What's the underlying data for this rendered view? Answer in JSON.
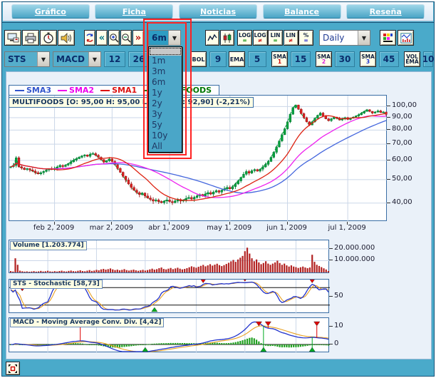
{
  "tabs": [
    "Gráfico",
    "Ficha",
    "Noticias",
    "Balance",
    "Reseña"
  ],
  "toolbar": {
    "period": {
      "value": "6m",
      "options": [
        "1m",
        "3m",
        "6m",
        "1y",
        "2y",
        "3y",
        "5y",
        "10y",
        "All"
      ]
    },
    "interval": {
      "value": "Daily"
    },
    "scale_buttons": [
      {
        "top": "LOG",
        "bottom": "=",
        "bottom_color": "#008800"
      },
      {
        "top": "LOG",
        "bottom": "≠",
        "bottom_color": "#CC0000"
      },
      {
        "top": "LIN",
        "bottom": "=",
        "bottom_color": "#008800"
      },
      {
        "top": "LIN",
        "bottom": "≠",
        "bottom_color": "#CC0000"
      },
      {
        "top": "%",
        "bottom": "=",
        "bottom_color": "#2222CC"
      }
    ]
  },
  "indicator_bar": {
    "combo1": "STS",
    "combo2": "MACD",
    "param1": "12",
    "param2": "26",
    "bol_label": "BOL",
    "bol_value": "9",
    "ema_label": "EMA",
    "ema_value": "5",
    "sma_label": "SMA",
    "sma1_sub": "1",
    "sma1_value": "15",
    "sma2_sub": "2",
    "sma2_value": "30",
    "sma3_sub": "3",
    "sma3_value": "45",
    "vol_label_top": "VOL",
    "vol_label_bottom": "EMA",
    "vol_value": "10"
  },
  "legend": [
    {
      "label": "SMA3",
      "color": "#3355CC"
    },
    {
      "label": "SMA2",
      "color": "#EE00EE"
    },
    {
      "label": "SMA1",
      "color": "#DD1111"
    },
    {
      "label": "MULTIFOODS",
      "color": "#007700"
    }
  ],
  "chart_data": {
    "type": "candlestick",
    "symbol": "MULTIFOODS",
    "title": "MULTIFOODS [O: 95,00  H: 95,00  L: 91,10  C: 92,90] (-2,21%)",
    "scale": "log",
    "interval": "Daily",
    "x_labels": [
      "feb 2, 2009",
      "mar 2, 2009",
      "abr 1, 2009",
      "may 1, 2009",
      "jun 1, 2009",
      "jul 1, 2009"
    ],
    "gridline_days": [
      16,
      37,
      58,
      80,
      101,
      123
    ],
    "y_ticks": [
      {
        "label": "100,00",
        "value": 100
      },
      {
        "label": "90,00",
        "value": 90
      },
      {
        "label": "80,00",
        "value": 80
      },
      {
        "label": "70,00",
        "value": 70
      },
      {
        "label": "60,00",
        "value": 60
      },
      {
        "label": "50,00",
        "value": 50
      },
      {
        "label": "40,00",
        "value": 40
      }
    ],
    "price_axis": {
      "top_value": 111,
      "bottom_value": 33.5
    },
    "closes": [
      56.5,
      57.2,
      61.5,
      56.5,
      55.8,
      55.0,
      55.5,
      54.8,
      54.2,
      53.4,
      52.8,
      53.4,
      54.0,
      54.8,
      55.4,
      55.0,
      55.6,
      56.4,
      57.2,
      56.6,
      57.4,
      58.2,
      59.2,
      60.2,
      61.0,
      61.8,
      62.6,
      63.2,
      62.4,
      63.6,
      64.0,
      63.0,
      61.8,
      60.4,
      59.0,
      59.8,
      60.8,
      59.4,
      57.6,
      55.6,
      53.6,
      51.6,
      49.8,
      48.0,
      46.4,
      45.2,
      44.2,
      43.4,
      44.0,
      42.8,
      42.0,
      41.4,
      40.8,
      41.2,
      40.6,
      40.2,
      40.8,
      41.2,
      40.6,
      40.2,
      40.8,
      41.4,
      40.8,
      41.2,
      41.8,
      42.2,
      41.6,
      42.2,
      42.8,
      43.4,
      42.8,
      43.6,
      44.2,
      43.6,
      44.4,
      45.0,
      44.4,
      45.2,
      45.8,
      46.4,
      45.8,
      46.8,
      48.0,
      49.4,
      51.0,
      52.6,
      54.0,
      53.2,
      54.4,
      55.0,
      54.2,
      55.2,
      56.4,
      57.8,
      59.4,
      61.8,
      64.8,
      68.2,
      72.2,
      76.6,
      81.0,
      86.5,
      93.0,
      99.0,
      101.5,
      97.5,
      93.5,
      90.0,
      86.5,
      84.0,
      86.5,
      89.5,
      92.0,
      94.0,
      91.5,
      89.0,
      87.5,
      89.0,
      90.5,
      89.5,
      88.0,
      89.0,
      90.0,
      88.5,
      89.5,
      90.5,
      91.5,
      92.5,
      94.0,
      95.5,
      97.0,
      95.5,
      94.0,
      95.0,
      96.0,
      94.5,
      95.0,
      92.9
    ],
    "volumes_millions": [
      1.2,
      0.8,
      12.0,
      6.5,
      1.5,
      1.0,
      0.7,
      0.9,
      0.6,
      0.8,
      1.1,
      0.7,
      0.9,
      1.3,
      0.8,
      1.0,
      1.4,
      0.9,
      0.7,
      1.1,
      0.8,
      1.2,
      1.5,
      1.0,
      0.8,
      1.3,
      1.6,
      1.1,
      0.9,
      1.4,
      1.8,
      1.2,
      1.0,
      1.5,
      2.0,
      1.3,
      1.6,
      2.2,
      1.8,
      2.6,
      3.0,
      2.4,
      2.8,
      3.4,
      2.6,
      2.0,
      2.4,
      1.8,
      2.2,
      2.8,
      2.0,
      1.6,
      2.0,
      2.4,
      1.8,
      1.4,
      1.8,
      2.2,
      1.6,
      2.0,
      2.6,
      3.2,
      2.4,
      2.8,
      3.6,
      4.2,
      3.0,
      2.6,
      3.2,
      3.8,
      2.8,
      3.4,
      4.0,
      3.2,
      2.6,
      3.0,
      3.6,
      4.4,
      5.2,
      4.6,
      4.0,
      4.8,
      5.6,
      6.4,
      5.2,
      6.0,
      7.0,
      5.8,
      6.6,
      7.4,
      6.2,
      5.4,
      6.2,
      7.2,
      8.2,
      9.4,
      10.6,
      9.0,
      11.0,
      12.5,
      14.0,
      18.0,
      21.0,
      16.0,
      12.0,
      9.5,
      11.0,
      8.5,
      7.0,
      8.0,
      9.5,
      7.5,
      6.5,
      7.5,
      8.5,
      10.0,
      8.0,
      6.5,
      7.5,
      6.0,
      5.0,
      6.0,
      5.0,
      4.5,
      3.8,
      4.4,
      5.0,
      4.2,
      3.6,
      4.2,
      15.0,
      9.0,
      6.5,
      5.5,
      4.5,
      3.5,
      2.5,
      1.2
    ],
    "sma_periods": {
      "sma1": 15,
      "sma2": 30,
      "sma3": 45
    },
    "colors": {
      "up": "#00A23C",
      "down": "#DD2222",
      "sma1": "#DD2211",
      "sma2": "#EE22EE",
      "sma3": "#4466DD",
      "price_line": "#009933",
      "volume_bar": "#B22222",
      "indicator_main": "#2233CC",
      "indicator_signal": "#E8A020",
      "histogram": "#22A022"
    },
    "panels": {
      "volume": {
        "label": "Volume [1.203.774]",
        "y_ticks": [
          {
            "label": "20.000.000",
            "value": 20
          },
          {
            "label": "10.000.000",
            "value": 10
          }
        ],
        "y_max_millions": 26
      },
      "stochastic": {
        "label": "STS - Stochastic [58,73]",
        "levels": [
          80,
          20
        ],
        "y_tick_label": "50",
        "y_tick_value": 50,
        "sell_days": [
          5,
          25,
          83,
          101,
          130
        ],
        "buy_days": [
          62
        ]
      },
      "macd": {
        "label": "MACD - Moving Average Conv. Div. [4,42]",
        "y_ticks": [
          {
            "label": "10",
            "value": 10
          },
          {
            "label": "0",
            "value": 0
          }
        ],
        "sell_days": [
          30,
          107,
          111,
          132
        ],
        "buy_days": [
          58,
          109,
          130
        ]
      }
    }
  }
}
